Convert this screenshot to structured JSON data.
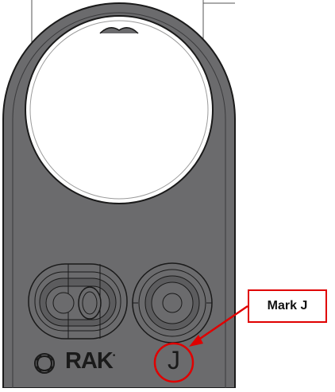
{
  "device": {
    "logo_text": "RAK",
    "logo_reg": "•",
    "mark_letter": "J"
  },
  "callout": {
    "label": "Mark J",
    "color": "#e00000"
  },
  "colors": {
    "plate": "#6b6b6d",
    "outline": "#1a1a1a",
    "hole": "#ffffff"
  }
}
